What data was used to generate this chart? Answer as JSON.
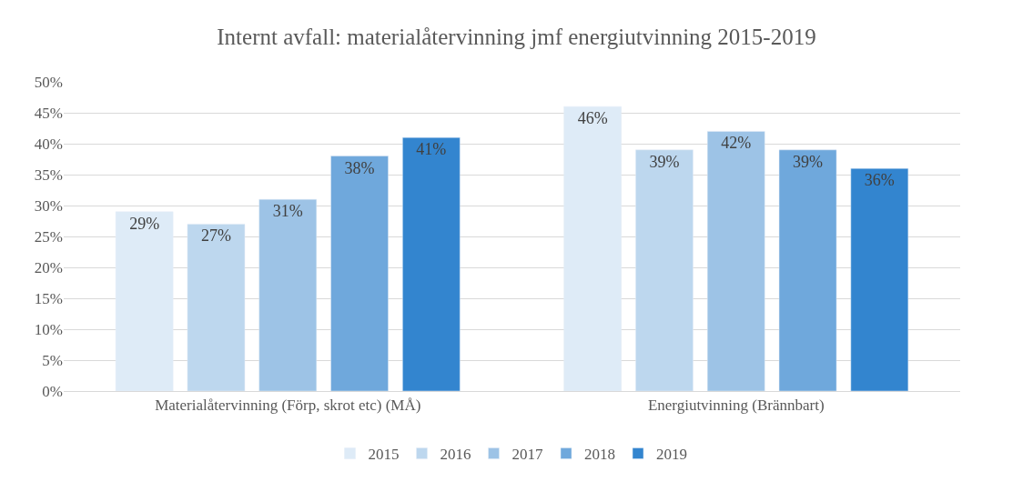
{
  "chart_data": {
    "type": "bar",
    "title": "Internt avfall: materialåtervinning jmf energiutvinning 2015-2019",
    "categories": [
      "Materialåtervinning (Förp, skrot etc) (MÅ)",
      "Energiutvinning (Brännbart)"
    ],
    "series": [
      {
        "name": "2015",
        "color": "#deebf7",
        "values": [
          29,
          46
        ],
        "value_labels": [
          "29%",
          "46%"
        ]
      },
      {
        "name": "2016",
        "color": "#bdd7ee",
        "values": [
          27,
          39
        ],
        "value_labels": [
          "27%",
          "39%"
        ]
      },
      {
        "name": "2017",
        "color": "#9dc3e6",
        "values": [
          31,
          42
        ],
        "value_labels": [
          "31%",
          "42%"
        ]
      },
      {
        "name": "2018",
        "color": "#6fa8dc",
        "values": [
          38,
          39
        ],
        "value_labels": [
          "38%",
          "39%"
        ]
      },
      {
        "name": "2019",
        "color": "#3385cf",
        "values": [
          41,
          36
        ],
        "value_labels": [
          "41%",
          "36%"
        ]
      }
    ],
    "ylim": [
      0,
      50
    ],
    "yticks": [
      {
        "value": 0,
        "label": "0%"
      },
      {
        "value": 5,
        "label": "5%"
      },
      {
        "value": 10,
        "label": "10%"
      },
      {
        "value": 15,
        "label": "15%"
      },
      {
        "value": 20,
        "label": "20%"
      },
      {
        "value": 25,
        "label": "25%"
      },
      {
        "value": 30,
        "label": "30%"
      },
      {
        "value": 35,
        "label": "35%"
      },
      {
        "value": 40,
        "label": "40%"
      },
      {
        "value": 45,
        "label": "45%"
      },
      {
        "value": 50,
        "label": "50%"
      }
    ],
    "grid": "y",
    "legend": "bottom"
  }
}
